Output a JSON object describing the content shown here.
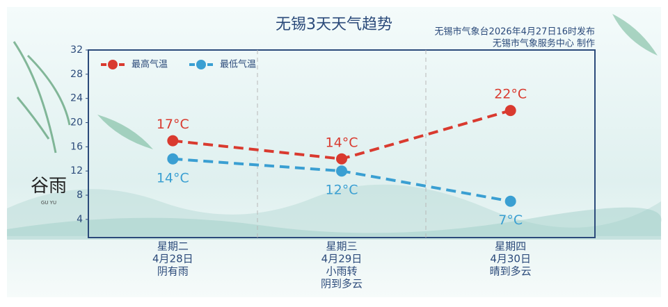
{
  "chart_data": {
    "type": "line",
    "title": "无锡3天天气趋势",
    "source": [
      "无锡市气象台2026年4月27日16时发布",
      "无锡市气象服务中心  制作"
    ],
    "solar_term": "谷雨",
    "solar_term_pinyin": "GU YU",
    "categories": [
      "星期二",
      "星期三",
      "星期四"
    ],
    "dates": [
      "4月28日",
      "4月29日",
      "4月30日"
    ],
    "weather": [
      [
        "阴有雨"
      ],
      [
        "小雨转",
        "阴到多云"
      ],
      [
        "晴到多云"
      ]
    ],
    "series": [
      {
        "name": "最高气温",
        "color": "#d93a2f",
        "values": [
          17,
          14,
          22
        ],
        "value_labels": [
          "17°C",
          "14°C",
          "22°C"
        ]
      },
      {
        "name": "最低气温",
        "color": "#3a9fd2",
        "values": [
          14,
          12,
          7
        ],
        "value_labels": [
          "14°C",
          "12°C",
          "7°C"
        ]
      }
    ],
    "ylim": [
      1,
      32
    ],
    "yticks": [
      4,
      8,
      12,
      16,
      20,
      24,
      28,
      32
    ],
    "legend": "top-left"
  }
}
